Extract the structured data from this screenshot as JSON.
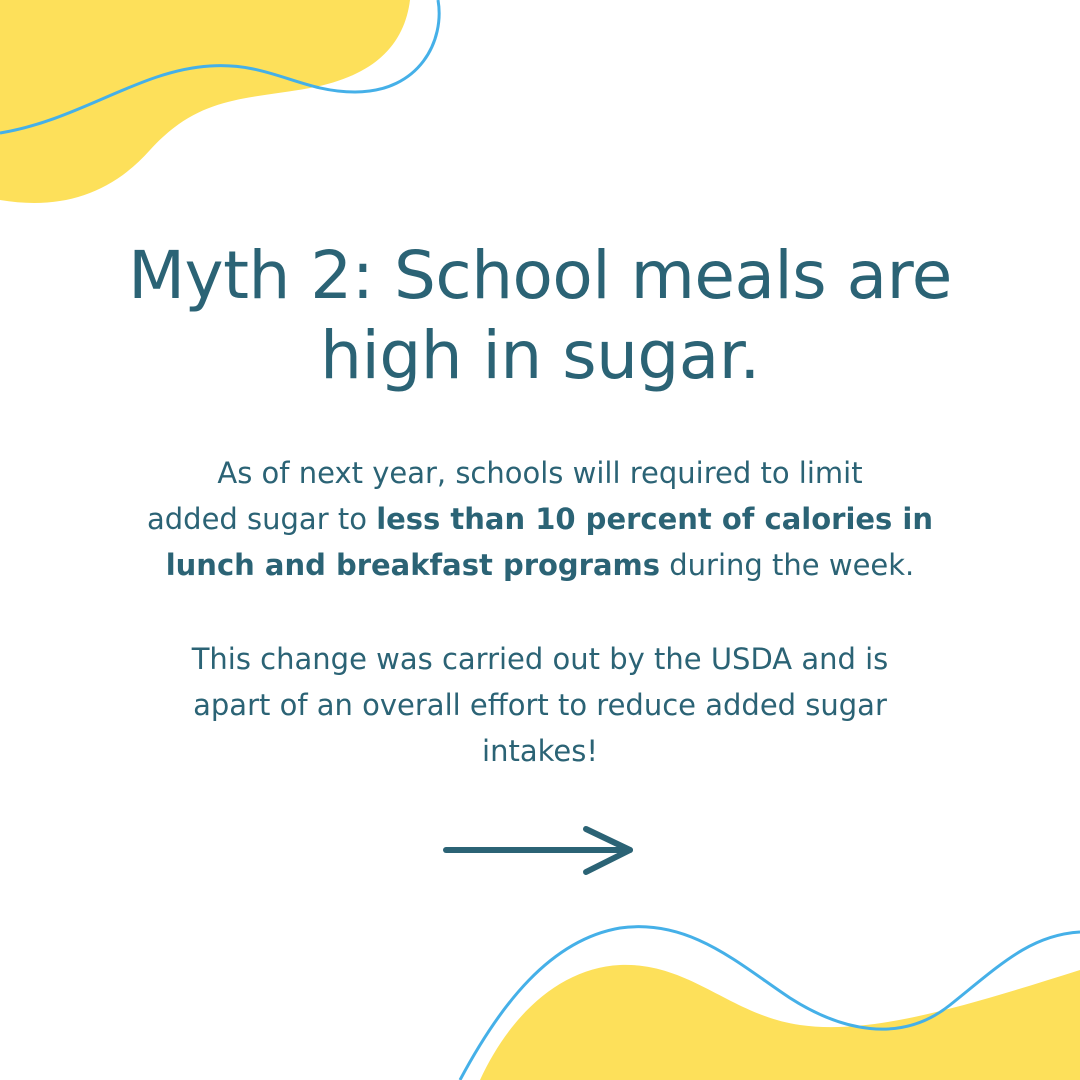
{
  "headline": {
    "line1": "Myth 2: School meals are",
    "line2": "high in sugar."
  },
  "paragraph1": {
    "line1": "As of next year, schools will required to limit",
    "line2_lead": "added sugar to ",
    "line2_bold": "less than 10 percent of calories in",
    "line3_bold": "lunch and breakfast programs",
    "line3_tail": " during the week."
  },
  "paragraph2": {
    "line1": "This change was carried out by the USDA and is",
    "line2": "apart of an overall effort to reduce added sugar",
    "line3": "intakes!"
  },
  "colors": {
    "text": "#2b6375",
    "accent_yellow": "#fde05a",
    "accent_blue": "#45b0e8",
    "background": "#ffffff"
  },
  "icons": {
    "next": "arrow-right-icon"
  }
}
